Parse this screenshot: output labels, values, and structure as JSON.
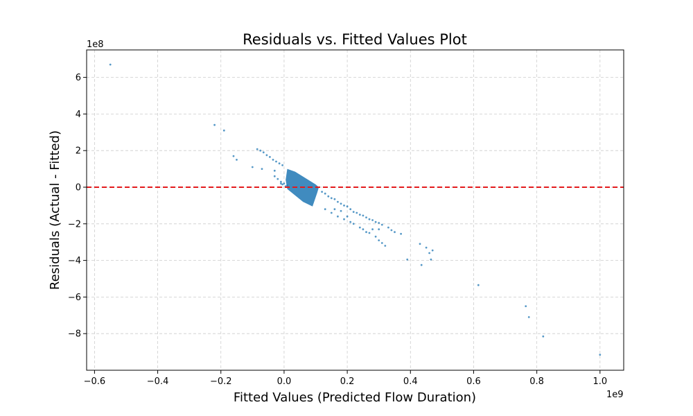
{
  "chart_data": {
    "type": "scatter",
    "title": "Residuals vs. Fitted Values Plot",
    "xlabel": "Fitted Values (Predicted Flow Duration)",
    "ylabel": "Residuals (Actual - Fitted)",
    "x_offset_label": "1e9",
    "y_offset_label": "1e8",
    "x_scale_factor": 1000000000.0,
    "y_scale_factor": 100000000.0,
    "xlim": [
      -0.625,
      1.075
    ],
    "ylim": [
      -10.0,
      7.5
    ],
    "x_ticks": [
      -0.6,
      -0.4,
      -0.2,
      0.0,
      0.2,
      0.4,
      0.6,
      0.8,
      1.0
    ],
    "x_tick_labels": [
      "−0.6",
      "−0.4",
      "−0.2",
      "0.0",
      "0.2",
      "0.4",
      "0.6",
      "0.8",
      "1.0"
    ],
    "y_ticks": [
      -8,
      -6,
      -4,
      -2,
      0,
      2,
      4,
      6
    ],
    "y_tick_labels": [
      "−8",
      "−6",
      "−4",
      "−2",
      "0",
      "2",
      "4",
      "6"
    ],
    "grid": true,
    "reference_line": {
      "y": 0,
      "style": "dashed",
      "color": "#e31a1c"
    },
    "colors": {
      "points": "#1f77b4",
      "reference_line": "#e31a1c",
      "grid": "#cccccc"
    },
    "points": [
      [
        -0.55,
        6.7
      ],
      [
        -0.22,
        3.4
      ],
      [
        -0.19,
        3.1
      ],
      [
        -0.16,
        1.7
      ],
      [
        -0.15,
        1.5
      ],
      [
        -0.1,
        1.1
      ],
      [
        -0.085,
        2.08
      ],
      [
        -0.075,
        2.0
      ],
      [
        -0.065,
        1.9
      ],
      [
        -0.055,
        1.75
      ],
      [
        -0.045,
        1.65
      ],
      [
        -0.035,
        1.5
      ],
      [
        -0.025,
        1.4
      ],
      [
        -0.015,
        1.3
      ],
      [
        -0.005,
        1.2
      ],
      [
        -0.07,
        1.0
      ],
      [
        -0.03,
        0.6
      ],
      [
        -0.02,
        0.45
      ],
      [
        -0.01,
        0.3
      ],
      [
        -0.005,
        0.15
      ],
      [
        0.0,
        0.2
      ],
      [
        0.005,
        0.05
      ],
      [
        0.01,
        0.1
      ],
      [
        -0.03,
        0.9
      ],
      [
        -0.01,
        0.2
      ],
      [
        0.12,
        -0.25
      ],
      [
        0.13,
        -0.35
      ],
      [
        0.14,
        -0.5
      ],
      [
        0.15,
        -0.6
      ],
      [
        0.16,
        -0.65
      ],
      [
        0.17,
        -0.8
      ],
      [
        0.18,
        -0.9
      ],
      [
        0.19,
        -1.0
      ],
      [
        0.2,
        -1.05
      ],
      [
        0.21,
        -1.2
      ],
      [
        0.22,
        -1.35
      ],
      [
        0.23,
        -1.4
      ],
      [
        0.24,
        -1.5
      ],
      [
        0.25,
        -1.55
      ],
      [
        0.26,
        -1.65
      ],
      [
        0.27,
        -1.75
      ],
      [
        0.28,
        -1.8
      ],
      [
        0.29,
        -1.9
      ],
      [
        0.3,
        -1.95
      ],
      [
        0.31,
        -2.05
      ],
      [
        0.33,
        -2.2
      ],
      [
        0.34,
        -2.35
      ],
      [
        0.35,
        -2.45
      ],
      [
        0.37,
        -2.55
      ],
      [
        0.13,
        -1.2
      ],
      [
        0.15,
        -1.4
      ],
      [
        0.17,
        -1.6
      ],
      [
        0.19,
        -1.75
      ],
      [
        0.21,
        -1.9
      ],
      [
        0.22,
        -2.0
      ],
      [
        0.24,
        -2.2
      ],
      [
        0.25,
        -2.3
      ],
      [
        0.27,
        -2.5
      ],
      [
        0.29,
        -2.7
      ],
      [
        0.3,
        -2.9
      ],
      [
        0.31,
        -3.05
      ],
      [
        0.32,
        -3.2
      ],
      [
        0.26,
        -2.45
      ],
      [
        0.28,
        -2.3
      ],
      [
        0.3,
        -2.3
      ],
      [
        0.2,
        -1.6
      ],
      [
        0.16,
        -1.2
      ],
      [
        0.18,
        -1.3
      ],
      [
        0.39,
        -3.95
      ],
      [
        0.43,
        -3.1
      ],
      [
        0.435,
        -4.25
      ],
      [
        0.45,
        -3.3
      ],
      [
        0.46,
        -3.6
      ],
      [
        0.465,
        -3.95
      ],
      [
        0.47,
        -3.45
      ],
      [
        0.615,
        -5.35
      ],
      [
        0.765,
        -6.5
      ],
      [
        0.775,
        -7.1
      ],
      [
        0.82,
        -8.15
      ],
      [
        1.0,
        -9.15
      ]
    ]
  }
}
